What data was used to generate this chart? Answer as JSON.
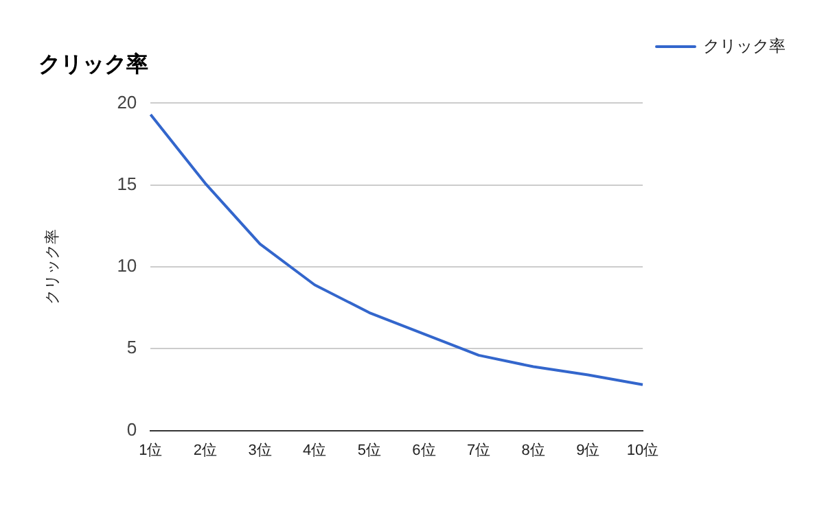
{
  "chart_data": {
    "type": "line",
    "title": "クリック率",
    "ylabel": "クリック率",
    "categories": [
      "1位",
      "2位",
      "3位",
      "4位",
      "5位",
      "6位",
      "7位",
      "8位",
      "9位",
      "10位"
    ],
    "series": [
      {
        "name": "クリック率",
        "color": "#3366cc",
        "values": [
          19.3,
          15.1,
          11.4,
          8.9,
          7.2,
          5.9,
          4.6,
          3.9,
          3.4,
          2.8
        ]
      }
    ],
    "ylim": [
      0,
      20
    ],
    "yticks": [
      0,
      5,
      10,
      15,
      20
    ],
    "grid": "y",
    "legend": "right",
    "marker": "none"
  }
}
